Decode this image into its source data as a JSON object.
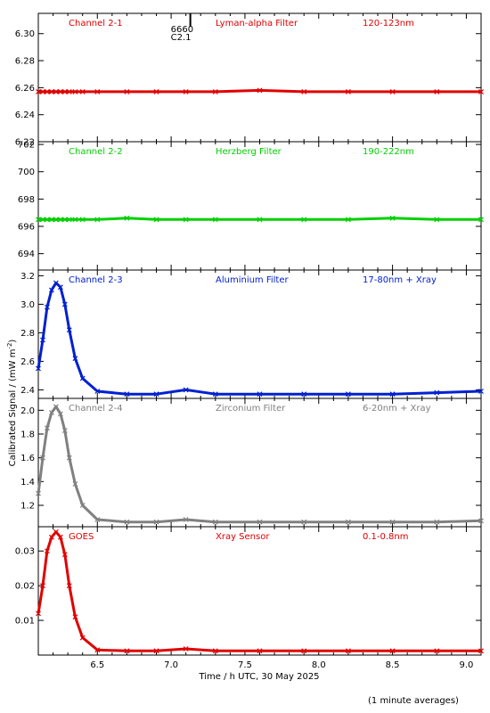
{
  "chart_data": {
    "type": "scatter",
    "x": [
      6.1,
      6.13,
      6.16,
      6.19,
      6.22,
      6.25,
      6.28,
      6.31,
      6.35,
      6.4,
      6.5,
      6.7,
      6.9,
      7.1,
      7.3,
      7.6,
      7.9,
      8.2,
      8.5,
      8.8,
      9.1
    ],
    "xlim": [
      6.1,
      9.1
    ],
    "xticks": [
      "6.5",
      "7.0",
      "7.5",
      "8.0",
      "8.5",
      "9.0"
    ],
    "xtick_values": [
      6.5,
      7.0,
      7.5,
      8.0,
      8.5,
      9.0
    ],
    "xlabel": "Time / h UTC, 30 May 2025",
    "ylabel": "Calibrated Signal / (mW m",
    "ylabel_sup": "-2",
    "ylabel_end": ")",
    "marker_text": "6660",
    "marker_text_2": "C2.1",
    "marker_x": 7.13,
    "panels": [
      {
        "channel": "Channel 2-1",
        "filter": "Lyman-alpha Filter",
        "band": "120-123nm",
        "color": "#e00000",
        "ylim": [
          6.22,
          6.315
        ],
        "yticks": [
          "6.22",
          "6.24",
          "6.26",
          "6.28",
          "6.30"
        ],
        "ytick_values": [
          6.22,
          6.24,
          6.26,
          6.28,
          6.3
        ],
        "values": [
          6.257,
          6.257,
          6.257,
          6.257,
          6.257,
          6.257,
          6.257,
          6.257,
          6.257,
          6.257,
          6.257,
          6.257,
          6.257,
          6.257,
          6.257,
          6.258,
          6.257,
          6.257,
          6.257,
          6.257,
          6.257
        ]
      },
      {
        "channel": "Channel 2-2",
        "filter": "Herzberg Filter",
        "band": "190-222nm",
        "color": "#00d000",
        "ylim": [
          692.8,
          702.2
        ],
        "yticks": [
          "694",
          "696",
          "698",
          "700",
          "702"
        ],
        "ytick_values": [
          694,
          696,
          698,
          700,
          702
        ],
        "values": [
          696.5,
          696.5,
          696.5,
          696.5,
          696.5,
          696.5,
          696.5,
          696.5,
          696.5,
          696.5,
          696.5,
          696.6,
          696.5,
          696.5,
          696.5,
          696.5,
          696.5,
          696.5,
          696.6,
          696.5,
          696.5
        ]
      },
      {
        "channel": "Channel 2-3",
        "filter": "Aluminium Filter",
        "band": "17-80nm + Xray",
        "color": "#0020d0",
        "ylim": [
          2.34,
          3.24
        ],
        "yticks": [
          "2.4",
          "2.6",
          "2.8",
          "3.0",
          "3.2"
        ],
        "ytick_values": [
          2.4,
          2.6,
          2.8,
          3.0,
          3.2
        ],
        "values": [
          2.55,
          2.75,
          2.98,
          3.1,
          3.15,
          3.12,
          3.0,
          2.82,
          2.62,
          2.48,
          2.39,
          2.37,
          2.37,
          2.4,
          2.37,
          2.37,
          2.37,
          2.37,
          2.37,
          2.38,
          2.39
        ]
      },
      {
        "channel": "Channel 2-4",
        "filter": "Zirconium Filter",
        "band": "6-20nm + Xray",
        "color": "#808080",
        "ylim": [
          1.02,
          2.1
        ],
        "yticks": [
          "1.2",
          "1.4",
          "1.6",
          "1.8",
          "2.0"
        ],
        "ytick_values": [
          1.2,
          1.4,
          1.6,
          1.8,
          2.0
        ],
        "values": [
          1.3,
          1.6,
          1.85,
          1.98,
          2.03,
          1.97,
          1.83,
          1.6,
          1.38,
          1.2,
          1.08,
          1.06,
          1.06,
          1.08,
          1.06,
          1.06,
          1.06,
          1.06,
          1.06,
          1.06,
          1.07
        ]
      },
      {
        "channel": "GOES",
        "filter": "Xray Sensor",
        "band": "0.1-0.8nm",
        "color": "#e00000",
        "ylim": [
          0.0,
          0.037
        ],
        "yticks": [
          "0.01",
          "0.02",
          "0.03"
        ],
        "ytick_values": [
          0.01,
          0.02,
          0.03
        ],
        "values": [
          0.012,
          0.02,
          0.03,
          0.034,
          0.0355,
          0.034,
          0.029,
          0.02,
          0.011,
          0.005,
          0.0015,
          0.0012,
          0.0012,
          0.0018,
          0.0012,
          0.0012,
          0.0012,
          0.0012,
          0.0012,
          0.0012,
          0.0012
        ]
      }
    ]
  },
  "footer": {
    "averaging_note": "(1 minute averages)"
  }
}
